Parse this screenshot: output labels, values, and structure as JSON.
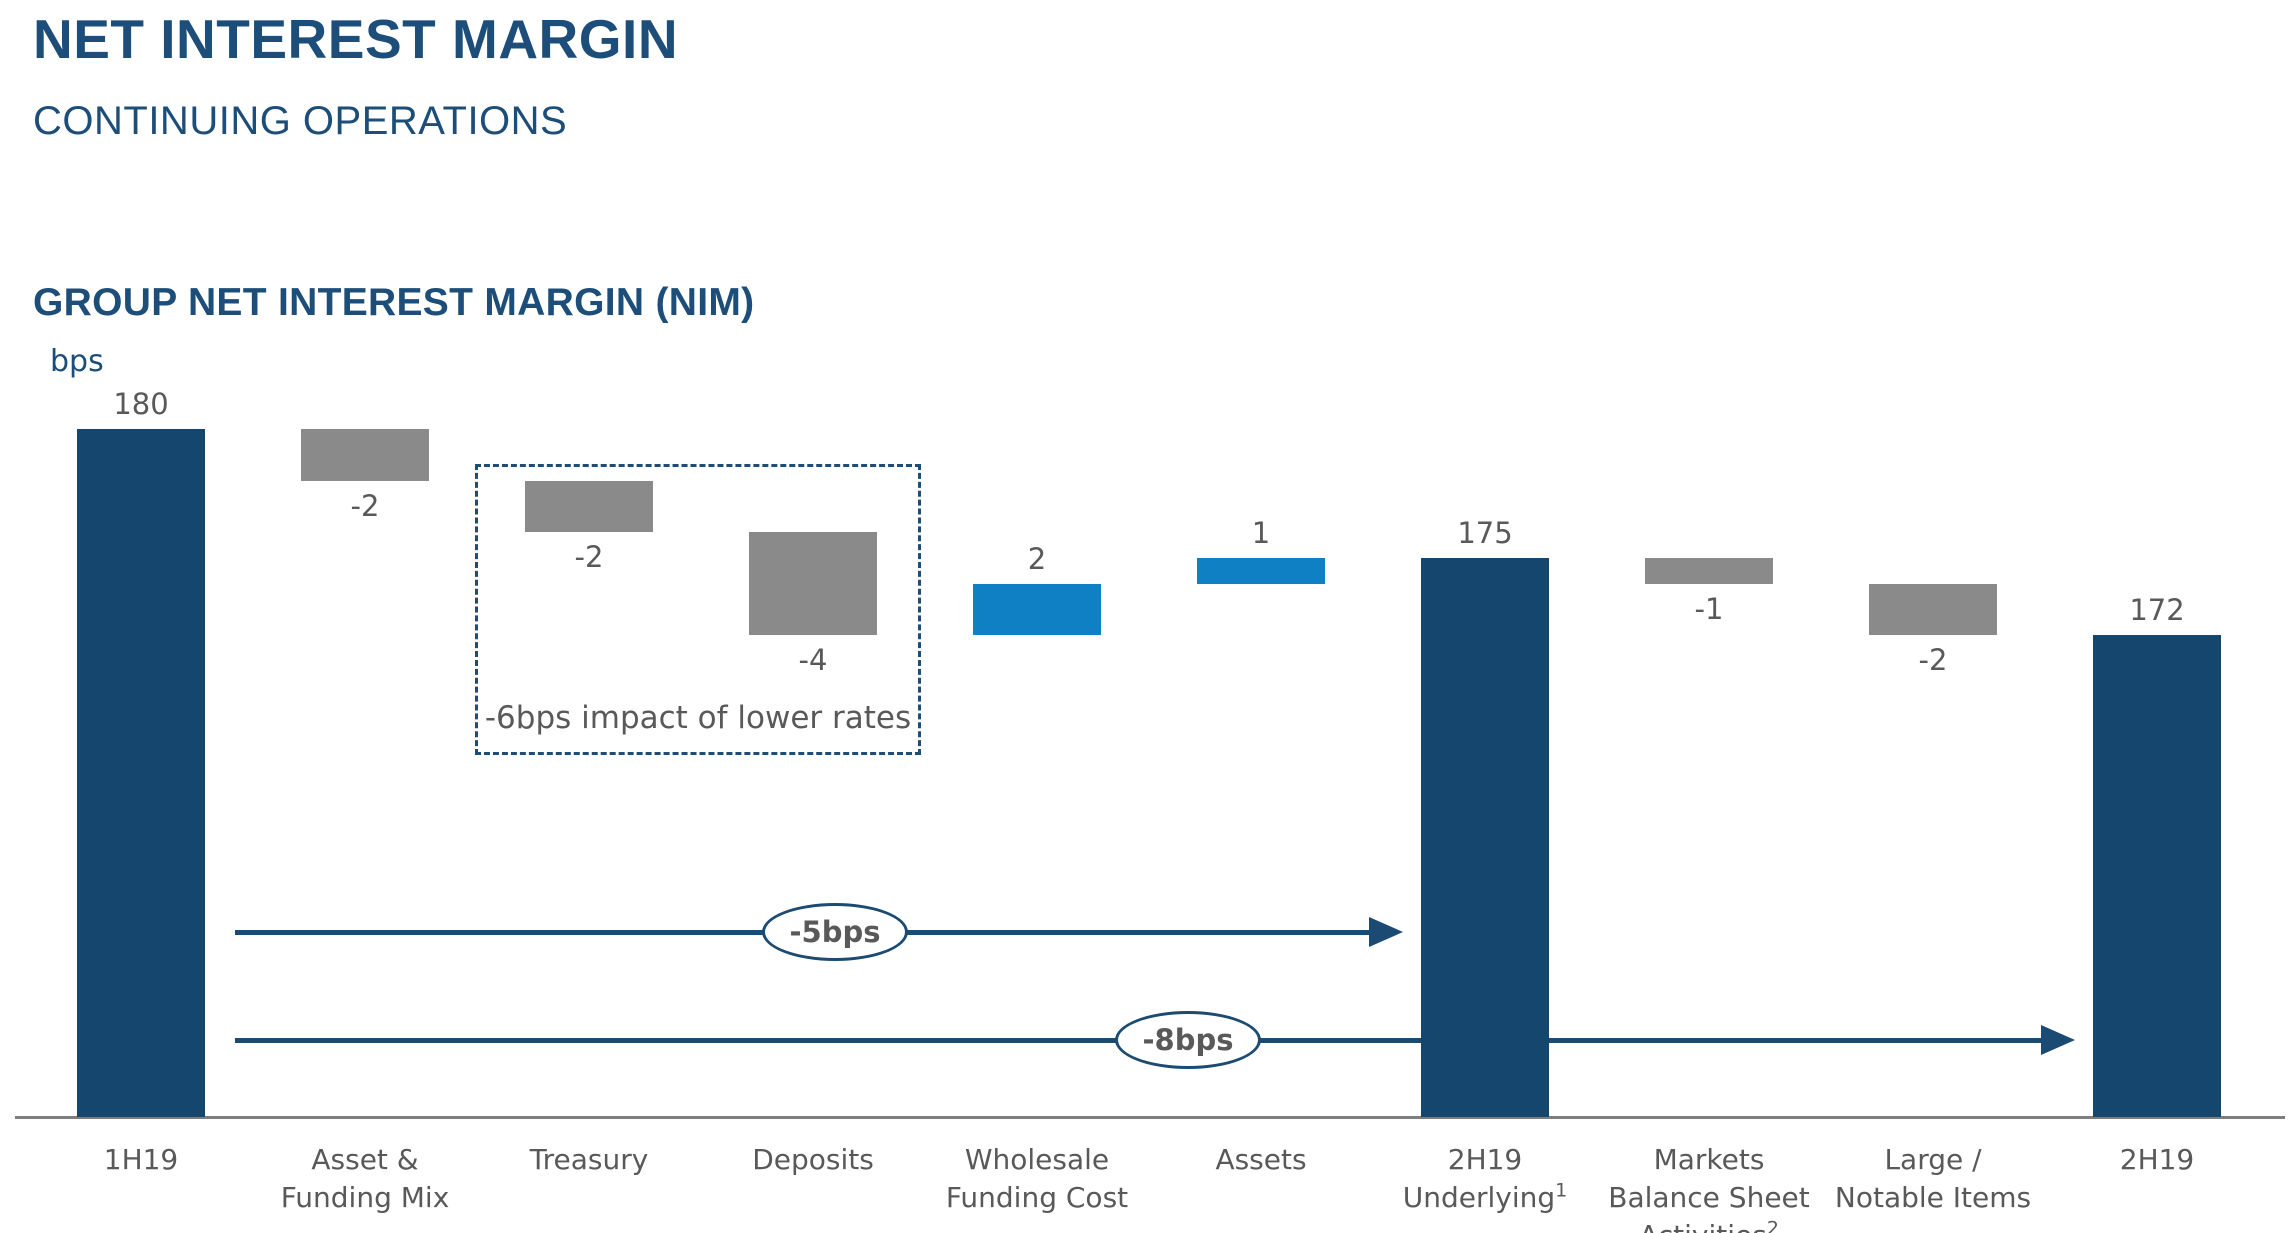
{
  "page": {
    "title": "NET INTEREST MARGIN",
    "subtitle": "CONTINUING OPERATIONS"
  },
  "chart_data": {
    "type": "bar",
    "subtype": "waterfall",
    "title": "GROUP NET INTEREST MARGIN (NIM)",
    "unit_label": "bps",
    "bars": [
      {
        "label_lines": [
          "1H19"
        ],
        "role": "total",
        "value": 180,
        "value_label": "180",
        "color": "navy"
      },
      {
        "label_lines": [
          "Asset &",
          "Funding Mix"
        ],
        "role": "delta",
        "value": -2,
        "value_label": "-2",
        "color": "gray"
      },
      {
        "label_lines": [
          "Treasury"
        ],
        "role": "delta",
        "value": -2,
        "value_label": "-2",
        "color": "gray"
      },
      {
        "label_lines": [
          "Deposits"
        ],
        "role": "delta",
        "value": -4,
        "value_label": "-4",
        "color": "gray"
      },
      {
        "label_lines": [
          "Wholesale",
          "Funding Cost"
        ],
        "role": "delta",
        "value": 2,
        "value_label": "2",
        "color": "blue"
      },
      {
        "label_lines": [
          "Assets"
        ],
        "role": "delta",
        "value": 1,
        "value_label": "1",
        "color": "blue"
      },
      {
        "label_lines": [
          "2H19",
          "Underlying"
        ],
        "label_sup": "1",
        "role": "total",
        "value": 175,
        "value_label": "175",
        "color": "navy"
      },
      {
        "label_lines": [
          "Markets",
          "Balance Sheet",
          "Activities"
        ],
        "label_sup": "2",
        "role": "delta",
        "value": -1,
        "value_label": "-1",
        "color": "gray"
      },
      {
        "label_lines": [
          "Large /",
          "Notable Items"
        ],
        "role": "delta",
        "value": -2,
        "value_label": "-2",
        "color": "gray"
      },
      {
        "label_lines": [
          "2H19"
        ],
        "role": "total",
        "value": 172,
        "value_label": "172",
        "color": "navy"
      }
    ],
    "annotations": {
      "dashed_box": {
        "text": "-6bps impact of lower rates",
        "covers_categories": [
          "Treasury",
          "Deposits"
        ]
      },
      "arrows": [
        {
          "label": "-5bps",
          "from_category": "1H19",
          "end_before_index": 6
        },
        {
          "label": "-8bps",
          "from_category": "1H19",
          "end_before_index": 9
        }
      ]
    },
    "colors": {
      "navy": "#15476e",
      "blue": "#1080c4",
      "gray": "#8a8a8a",
      "title_navy": "#1c4e79",
      "text_gray": "#595959",
      "axis_gray": "#7f7f7f",
      "arrow_navy": "#1b4a73"
    },
    "layout_hints": {
      "axis_visible": true,
      "gridlines": false,
      "legend": false,
      "value_labels": "outside-end"
    }
  }
}
